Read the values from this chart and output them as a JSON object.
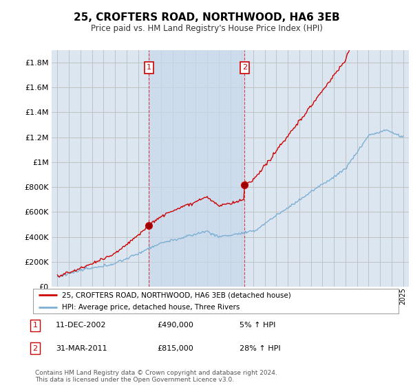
{
  "title": "25, CROFTERS ROAD, NORTHWOOD, HA6 3EB",
  "subtitle": "Price paid vs. HM Land Registry's House Price Index (HPI)",
  "ytick_values": [
    0,
    200000,
    400000,
    600000,
    800000,
    1000000,
    1200000,
    1400000,
    1600000,
    1800000
  ],
  "ylim": [
    0,
    1900000
  ],
  "xlim_start": 1994.5,
  "xlim_end": 2025.5,
  "transaction1_x": 2002.95,
  "transaction1_y": 490000,
  "transaction2_x": 2011.25,
  "transaction2_y": 815000,
  "legend_line1": "25, CROFTERS ROAD, NORTHWOOD, HA6 3EB (detached house)",
  "legend_line2": "HPI: Average price, detached house, Three Rivers",
  "footer": "Contains HM Land Registry data © Crown copyright and database right 2024.\nThis data is licensed under the Open Government Licence v3.0.",
  "line_color_red": "#cc0000",
  "line_color_blue": "#7bafd4",
  "shade_color": "#dce6f1",
  "background_color": "#dce6f1",
  "plot_bg_color": "#ffffff",
  "grid_color": "#bbbbbb"
}
